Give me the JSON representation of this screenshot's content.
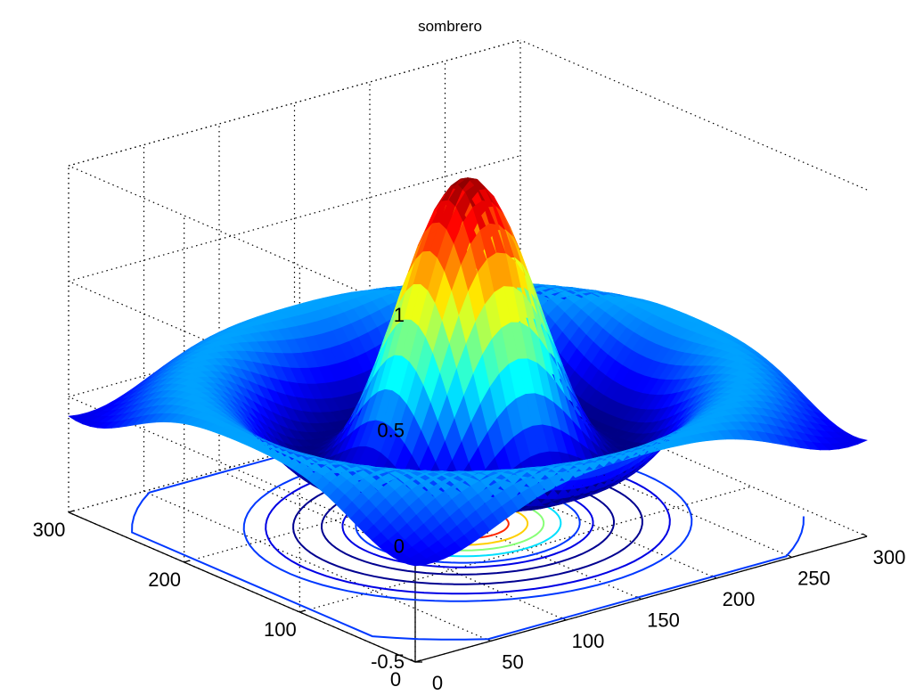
{
  "chart_data": {
    "type": "surface",
    "title": "sombrero",
    "xlabel": "",
    "ylabel": "",
    "zlabel": "",
    "function": "sin(r)/r",
    "grid": true,
    "xlim": [
      0,
      300
    ],
    "ylim": [
      0,
      300
    ],
    "zlim": [
      -0.5,
      1
    ],
    "x_ticks": [
      "0",
      "50",
      "100",
      "150",
      "200",
      "250",
      "300"
    ],
    "y_ticks": [
      "0",
      "100",
      "200",
      "300"
    ],
    "z_ticks": [
      "-0.5",
      "0",
      "0.5",
      "1"
    ],
    "peak": {
      "x": 150,
      "y": 150,
      "z": 1
    },
    "contour_levels": [
      -0.2,
      -0.1,
      0,
      0.2,
      0.4,
      0.6,
      0.8
    ],
    "colormap": "jet"
  }
}
